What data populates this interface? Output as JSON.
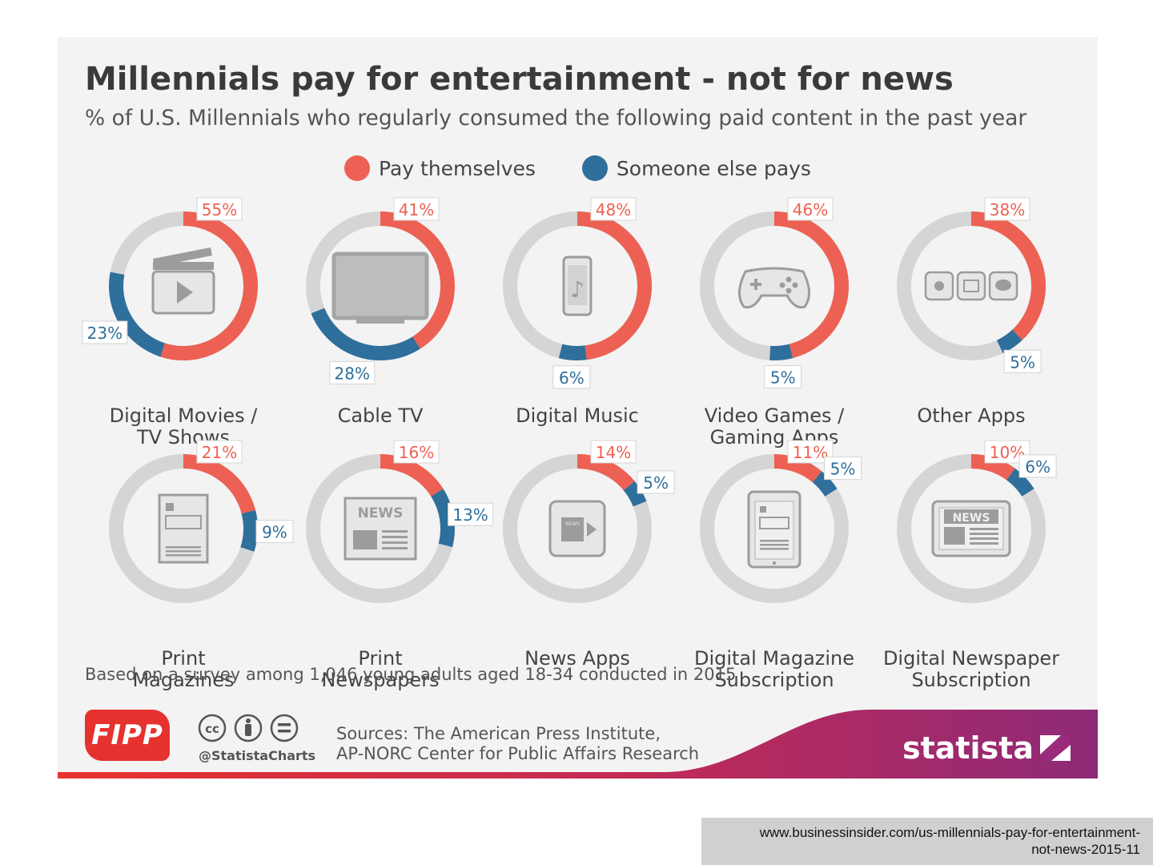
{
  "title": "Millennials pay for entertainment - not for news",
  "subtitle": "% of U.S. Millennials who regularly consumed the following paid content in the past year",
  "legend": {
    "pay_themselves": "Pay themselves",
    "someone_else": "Someone else pays"
  },
  "colors": {
    "pay_themselves": "#ec6153",
    "someone_else": "#2f6f9c",
    "track": "#d5d5d5",
    "background": "#f3f3f3"
  },
  "chart_data": {
    "type": "donut",
    "title": "Millennials pay for entertainment - not for news",
    "series": [
      {
        "name": "Pay themselves",
        "values": [
          55,
          41,
          48,
          46,
          38,
          21,
          16,
          14,
          11,
          10
        ]
      },
      {
        "name": "Someone else pays",
        "values": [
          23,
          28,
          6,
          5,
          5,
          9,
          13,
          5,
          5,
          6
        ]
      }
    ],
    "categories": [
      {
        "lines": [
          "Digital Movies /",
          "TV Shows"
        ],
        "pay": 55,
        "other": 23,
        "pay_label": "55%",
        "other_label": "23%",
        "icon": "clapperboard-icon"
      },
      {
        "lines": [
          "Cable TV"
        ],
        "pay": 41,
        "other": 28,
        "pay_label": "41%",
        "other_label": "28%",
        "icon": "tv-icon"
      },
      {
        "lines": [
          "Digital Music"
        ],
        "pay": 48,
        "other": 6,
        "pay_label": "48%",
        "other_label": "6%",
        "icon": "music-phone-icon"
      },
      {
        "lines": [
          "Video Games /",
          "Gaming Apps"
        ],
        "pay": 46,
        "other": 5,
        "pay_label": "46%",
        "other_label": "5%",
        "icon": "gamepad-icon"
      },
      {
        "lines": [
          "Other Apps"
        ],
        "pay": 38,
        "other": 5,
        "pay_label": "38%",
        "other_label": "5%",
        "icon": "apps-icon"
      },
      {
        "lines": [
          "Print",
          "Magazines"
        ],
        "pay": 21,
        "other": 9,
        "pay_label": "21%",
        "other_label": "9%",
        "icon": "magazine-icon"
      },
      {
        "lines": [
          "Print",
          "Newspapers"
        ],
        "pay": 16,
        "other": 13,
        "pay_label": "16%",
        "other_label": "13%",
        "icon": "newspaper-icon",
        "icon_text": "NEWS"
      },
      {
        "lines": [
          "News Apps"
        ],
        "pay": 14,
        "other": 5,
        "pay_label": "14%",
        "other_label": "5%",
        "icon": "news-app-icon",
        "icon_text": "NEWS"
      },
      {
        "lines": [
          "Digital Magazine",
          "Subscription"
        ],
        "pay": 11,
        "other": 5,
        "pay_label": "11%",
        "other_label": "5%",
        "icon": "tablet-magazine-icon"
      },
      {
        "lines": [
          "Digital Newspaper",
          "Subscription"
        ],
        "pay": 10,
        "other": 6,
        "pay_label": "10%",
        "other_label": "6%",
        "icon": "tablet-newspaper-icon",
        "icon_text": "NEWS"
      }
    ]
  },
  "footnote": "Based on a survey among 1,046 young adults aged 18-34 conducted in 2015",
  "footer": {
    "fipp_logo": "FIPP",
    "handle": "@StatistaCharts",
    "sources_line1": "Sources: The American Press Institute,",
    "sources_line2": "AP-NORC Center for Public Affairs Research",
    "statista_logo": "statista"
  },
  "url": {
    "line1": "www.businessinsider.com/us-millennials-pay-for-entertainment-",
    "line2": "not-news-2015-11"
  }
}
